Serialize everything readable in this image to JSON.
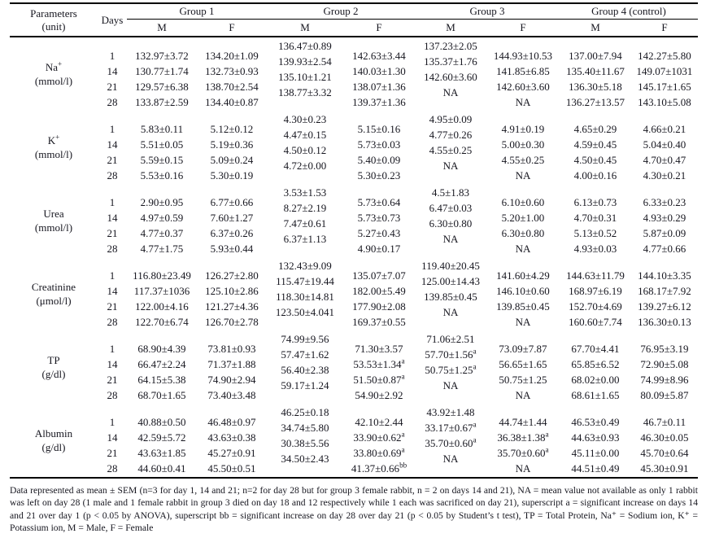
{
  "table": {
    "header": {
      "parameters_line1": "Parameters",
      "parameters_line2": "(unit)",
      "days_label": "Days",
      "groups": [
        "Group 1",
        "Group 2",
        "Group 3",
        "Group 4 (control)"
      ],
      "sex_labels": [
        "M",
        "F"
      ]
    },
    "rows": [
      {
        "parameter": "Na^+",
        "unit": "(mmol/l)",
        "days": [
          "1",
          "14",
          "21",
          "28"
        ],
        "cells": {
          "g1m": [
            "132.97±3.72",
            "130.77±1.74",
            "129.57±6.38",
            "133.87±2.59"
          ],
          "g1f": [
            "134.20±1.09",
            "132.73±0.93",
            "138.70±2.54",
            "134.40±0.87"
          ],
          "g2m": [
            "136.47±0.89",
            "139.93±2.54",
            "135.10±1.21",
            "138.77±3.32"
          ],
          "g2f": [
            "142.63±3.44",
            "140.03±1.30",
            "138.07±1.36",
            "139.37±1.36"
          ],
          "g3m": [
            "137.23±2.05",
            "135.37±1.76",
            "142.60±3.60",
            "NA"
          ],
          "g3f": [
            "144.93±10.53",
            "141.85±6.85",
            "142.60±3.60",
            "NA"
          ],
          "g4m": [
            "137.00±7.94",
            "135.40±11.67",
            "136.30±5.18",
            "136.27±13.57"
          ],
          "g4f": [
            "142.27±5.80",
            "149.07±1031",
            "145.17±1.65",
            "143.10±5.08"
          ]
        }
      },
      {
        "parameter": "K^+",
        "unit": "(mmol/l)",
        "days": [
          "1",
          "14",
          "21",
          "28"
        ],
        "cells": {
          "g1m": [
            "5.83±0.11",
            "5.51±0.05",
            "5.59±0.15",
            "5.53±0.16"
          ],
          "g1f": [
            "5.12±0.12",
            "5.19±0.36",
            "5.09±0.24",
            "5.30±0.19"
          ],
          "g2m": [
            "4.30±0.23",
            "4.47±0.15",
            "4.50±0.12",
            "4.72±0.00"
          ],
          "g2f": [
            "5.15±0.16",
            "5.73±0.03",
            "5.40±0.09",
            "5.30±0.23"
          ],
          "g3m": [
            "4.95±0.09",
            "4.77±0.26",
            "4.55±0.25",
            "NA"
          ],
          "g3f": [
            "4.91±0.19",
            "5.00±0.30",
            "4.55±0.25",
            "NA"
          ],
          "g4m": [
            "4.65±0.29",
            "4.59±0.45",
            "4.50±0.45",
            "4.00±0.16"
          ],
          "g4f": [
            "4.66±0.21",
            "5.04±0.40",
            "4.70±0.47",
            "4.30±0.21"
          ]
        }
      },
      {
        "parameter": "Urea",
        "unit": "(mmol/l)",
        "days": [
          "1",
          "14",
          "21",
          "28"
        ],
        "cells": {
          "g1m": [
            "2.90±0.95",
            "4.97±0.59",
            "4.77±0.37",
            "4.77±1.75"
          ],
          "g1f": [
            "6.77±0.66",
            "7.60±1.27",
            "6.37±0.26",
            "5.93±0.44"
          ],
          "g2m": [
            "3.53±1.53",
            "8.27±2.19",
            "7.47±0.61",
            "6.37±1.13"
          ],
          "g2f": [
            "5.73±0.64",
            "5.73±0.73",
            "5.27±0.43",
            "4.90±0.17"
          ],
          "g3m": [
            "4.5±1.83",
            "6.47±0.03",
            "6.30±0.80",
            "NA"
          ],
          "g3f": [
            "6.10±0.60",
            "5.20±1.00",
            "6.30±0.80",
            "NA"
          ],
          "g4m": [
            "6.13±0.73",
            "4.70±0.31",
            "5.13±0.52",
            "4.93±0.03"
          ],
          "g4f": [
            "6.33±0.23",
            "4.93±0.29",
            "5.87±0.09",
            "4.77±0.66"
          ]
        }
      },
      {
        "parameter": "Creatinine",
        "unit": "(μmol/l)",
        "days": [
          "1",
          "14",
          "21",
          "28"
        ],
        "cells": {
          "g1m": [
            "116.80±23.49",
            "117.37±1036",
            "122.00±4.16",
            "122.70±6.74"
          ],
          "g1f": [
            "126.27±2.80",
            "125.10±2.86",
            "121.27±4.36",
            "126.70±2.78"
          ],
          "g2m": [
            "132.43±9.09",
            "115.47±19.44",
            "118.30±14.81",
            "123.50±4.041"
          ],
          "g2f": [
            "135.07±7.07",
            "182.00±5.49",
            "177.90±2.08",
            "169.37±0.55"
          ],
          "g3m": [
            "119.40±20.45",
            "125.00±14.43",
            "139.85±0.45",
            "NA"
          ],
          "g3f": [
            "141.60±4.29",
            "146.10±0.60",
            "139.85±0.45",
            "NA"
          ],
          "g4m": [
            "144.63±11.79",
            "168.97±6.19",
            "152.70±4.69",
            "160.60±7.74"
          ],
          "g4f": [
            "144.10±3.35",
            "168.17±7.92",
            "139.27±6.12",
            "136.30±0.13"
          ]
        }
      },
      {
        "parameter": "TP",
        "unit": "(g/dl)",
        "days": [
          "1",
          "14",
          "21",
          "28"
        ],
        "cells": {
          "g1m": [
            "68.90±4.39",
            "66.47±2.24",
            "64.15±5.38",
            "68.70±1.65"
          ],
          "g1f": [
            "73.81±0.93",
            "71.37±1.88",
            "74.90±2.94",
            "73.40±3.48"
          ],
          "g2m": [
            "74.99±9.56",
            "57.47±1.62",
            "56.40±2.38",
            "59.17±1.24"
          ],
          "g2f": [
            "71.30±3.57",
            "53.53±1.34^a",
            "51.50±0.87^a",
            "54.90±2.92"
          ],
          "g3m": [
            "71.06±2.51",
            "57.70±1.56^a",
            "50.75±1.25^a",
            "NA"
          ],
          "g3f": [
            "73.09±7.87",
            "56.65±1.65",
            "50.75±1.25",
            "NA"
          ],
          "g4m": [
            "67.70±4.41",
            "65.85±6.52",
            "68.02±0.00",
            "68.61±1.65"
          ],
          "g4f": [
            "76.95±3.19",
            "72.90±5.08",
            "74.99±8.96",
            "80.09±5.87"
          ]
        }
      },
      {
        "parameter": "Albumin",
        "unit": "(g/dl)",
        "days": [
          "1",
          "14",
          "21",
          "28"
        ],
        "cells": {
          "g1m": [
            "40.88±0.50",
            "42.59±5.72",
            "43.63±1.85",
            "44.60±0.41"
          ],
          "g1f": [
            "46.48±0.97",
            "43.63±0.38",
            "45.27±0.91",
            "45.50±0.51"
          ],
          "g2m": [
            "46.25±0.18",
            "34.74±5.80",
            "30.38±5.56",
            "34.50±2.43"
          ],
          "g2f": [
            "42.10±2.44",
            "33.90±0.62^a",
            "33.80±0.69^a",
            "41.37±0.66^bb"
          ],
          "g3m": [
            "43.92±1.48",
            "33.17±0.67^a",
            "35.70±0.60^a",
            "NA"
          ],
          "g3f": [
            "44.74±1.44",
            "36.38±1.38^a",
            "35.70±0.60^a",
            "NA"
          ],
          "g4m": [
            "46.53±0.49",
            "44.63±0.93",
            "45.11±0.00",
            "44.51±0.49"
          ],
          "g4f": [
            "46.7±0.11",
            "46.30±0.05",
            "45.70±0.64",
            "45.30±0.91"
          ]
        }
      }
    ],
    "footnote": "Data represented as mean ± SEM (n=3 for day 1, 14 and 21; n=2 for day 28 but for group 3 female rabbit, n = 2 on days 14 and 21), NA = mean value not available as only 1 rabbit was left on day 28 (1 male and 1 female rabbit in group 3 died on day 18 and 12 respectively while 1 each was sacrificed on day 21), superscript a = significant increase on days 14 and 21 over day 1 (p < 0.05 by ANOVA),  superscript bb = significant increase on day 28 over day 21 (p < 0.05 by Student’s t test), TP = Total Protein, Na⁺ = Sodium ion, K⁺ = Potassium ion, M = Male, F = Female"
  }
}
